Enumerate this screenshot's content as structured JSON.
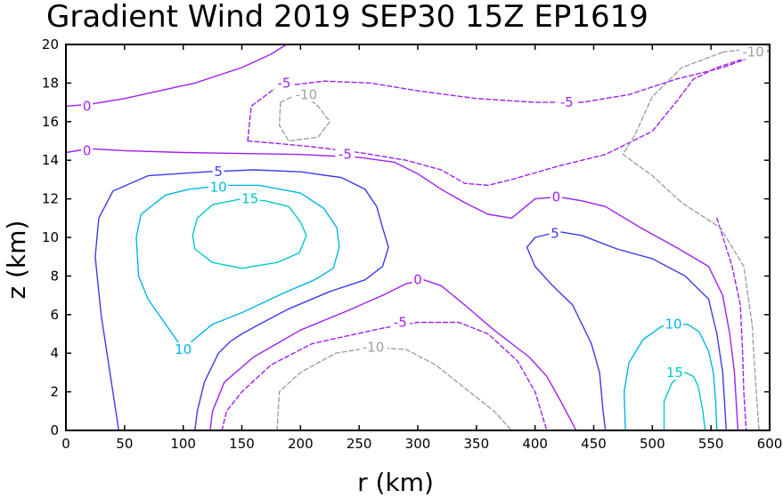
{
  "chart_data": {
    "type": "contour",
    "title": "Gradient Wind 2019 SEP30 15Z  EP1619",
    "xlabel": "r (km)",
    "ylabel": "z (km)",
    "xlim": [
      0,
      600
    ],
    "ylim": [
      0,
      20
    ],
    "x_ticks": [
      "0",
      "50",
      "100",
      "150",
      "200",
      "250",
      "300",
      "350",
      "400",
      "450",
      "500",
      "550",
      "600"
    ],
    "y_ticks": [
      "0",
      "2",
      "4",
      "6",
      "8",
      "10",
      "12",
      "14",
      "16",
      "18",
      "20"
    ],
    "grid": false,
    "level_colors": {
      "-10": "#a0a0a0",
      "-5": "#a020f0",
      "0": "#a020f0",
      "5": "#3c3ce6",
      "10": "#00b4e6",
      "15": "#00c8c8"
    },
    "contours": [
      {
        "level": 0,
        "points": [
          [
            0,
            16.8
          ],
          [
            20,
            16.9
          ],
          [
            50,
            17.2
          ],
          [
            95,
            17.8
          ],
          [
            110,
            18.0
          ],
          [
            150,
            18.8
          ],
          [
            175,
            19.5
          ],
          [
            188,
            20.0
          ]
        ]
      },
      {
        "level": 0,
        "points": [
          [
            0,
            14.4
          ],
          [
            20,
            14.6
          ],
          [
            50,
            14.5
          ],
          [
            100,
            14.4
          ],
          [
            150,
            14.35
          ],
          [
            200,
            14.3
          ],
          [
            250,
            14.15
          ],
          [
            280,
            13.9
          ],
          [
            300,
            13.3
          ],
          [
            320,
            12.5
          ],
          [
            340,
            11.8
          ],
          [
            360,
            11.2
          ],
          [
            380,
            11.0
          ],
          [
            400,
            12.0
          ],
          [
            420,
            12.1
          ],
          [
            440,
            11.9
          ],
          [
            460,
            11.6
          ],
          [
            490,
            10.5
          ],
          [
            520,
            9.5
          ],
          [
            548,
            8.5
          ],
          [
            560,
            7.0
          ],
          [
            566,
            5.0
          ],
          [
            570,
            3.0
          ],
          [
            572,
            1.0
          ],
          [
            573,
            0.0
          ]
        ]
      },
      {
        "level": 0,
        "points": [
          [
            123,
            0
          ],
          [
            125,
            1.0
          ],
          [
            135,
            2.5
          ],
          [
            160,
            3.8
          ],
          [
            200,
            5.2
          ],
          [
            240,
            6.2
          ],
          [
            270,
            7.0
          ],
          [
            290,
            7.6
          ],
          [
            305,
            7.8
          ],
          [
            320,
            7.5
          ],
          [
            340,
            6.5
          ],
          [
            365,
            5.2
          ],
          [
            395,
            3.8
          ],
          [
            410,
            2.8
          ],
          [
            422,
            1.5
          ],
          [
            435,
            0.0
          ]
        ]
      },
      {
        "level": 5,
        "points": [
          [
            45,
            0
          ],
          [
            40,
            2
          ],
          [
            30,
            6
          ],
          [
            25,
            9
          ],
          [
            28,
            11
          ],
          [
            40,
            12.4
          ],
          [
            70,
            13.2
          ],
          [
            120,
            13.4
          ],
          [
            160,
            13.5
          ],
          [
            200,
            13.4
          ],
          [
            235,
            13.1
          ],
          [
            255,
            12.5
          ],
          [
            265,
            11.6
          ],
          [
            270,
            10.5
          ],
          [
            275,
            9.5
          ],
          [
            270,
            8.5
          ],
          [
            255,
            7.8
          ],
          [
            240,
            7.5
          ],
          [
            225,
            7.2
          ],
          [
            190,
            6.3
          ],
          [
            165,
            5.5
          ],
          [
            150,
            5.0
          ],
          [
            140,
            4.6
          ],
          [
            130,
            4.0
          ],
          [
            118,
            2.5
          ],
          [
            112,
            1.0
          ],
          [
            110,
            0.0
          ]
        ]
      },
      {
        "level": 5,
        "points": [
          [
            460,
            0
          ],
          [
            458,
            1
          ],
          [
            455,
            3
          ],
          [
            448,
            4.5
          ],
          [
            432,
            6.5
          ],
          [
            415,
            7.5
          ],
          [
            400,
            8.5
          ],
          [
            393,
            9.5
          ],
          [
            400,
            10.0
          ],
          [
            420,
            10.3
          ],
          [
            440,
            10.1
          ],
          [
            470,
            9.4
          ],
          [
            500,
            8.9
          ],
          [
            528,
            8.0
          ],
          [
            548,
            6.8
          ],
          [
            555,
            5.0
          ],
          [
            560,
            3.0
          ],
          [
            562,
            1.0
          ],
          [
            563,
            0.0
          ]
        ]
      },
      {
        "level": 10,
        "points": [
          [
            100,
            4.2
          ],
          [
            85,
            5.5
          ],
          [
            70,
            6.8
          ],
          [
            62,
            8.0
          ],
          [
            60,
            10.0
          ],
          [
            64,
            11.2
          ],
          [
            85,
            12.2
          ],
          [
            105,
            12.5
          ],
          [
            135,
            12.7
          ],
          [
            165,
            12.7
          ],
          [
            200,
            12.3
          ],
          [
            220,
            11.5
          ],
          [
            231,
            10.5
          ],
          [
            233,
            9.5
          ],
          [
            228,
            8.4
          ],
          [
            212,
            7.8
          ],
          [
            185,
            7.1
          ],
          [
            150,
            6.1
          ],
          [
            125,
            5.5
          ],
          [
            107,
            4.6
          ]
        ]
      },
      {
        "level": 10,
        "points": [
          [
            477,
            0
          ],
          [
            476,
            2.0
          ],
          [
            480,
            3.5
          ],
          [
            492,
            4.7
          ],
          [
            508,
            5.4
          ],
          [
            530,
            5.5
          ],
          [
            540,
            5.1
          ],
          [
            548,
            4.1
          ],
          [
            552,
            3.0
          ],
          [
            554,
            1.5
          ],
          [
            555,
            0.0
          ]
        ]
      },
      {
        "level": 15,
        "points": [
          [
            108,
            10.1
          ],
          [
            112,
            11.0
          ],
          [
            125,
            11.7
          ],
          [
            150,
            12.0
          ],
          [
            170,
            11.9
          ],
          [
            190,
            11.6
          ],
          [
            200,
            10.8
          ],
          [
            205,
            10.1
          ],
          [
            199,
            9.2
          ],
          [
            180,
            8.7
          ],
          [
            150,
            8.4
          ],
          [
            125,
            8.7
          ],
          [
            110,
            9.4
          ],
          [
            108,
            10.1
          ]
        ]
      },
      {
        "level": 15,
        "points": [
          [
            510,
            0
          ],
          [
            510,
            1.5
          ],
          [
            517,
            2.5
          ],
          [
            528,
            3.0
          ],
          [
            535,
            2.8
          ],
          [
            539,
            2.3
          ],
          [
            543,
            1.0
          ],
          [
            545,
            0.0
          ]
        ]
      },
      {
        "level": -5,
        "points": [
          [
            155,
            15.0
          ],
          [
            158,
            16.8
          ],
          [
            180,
            17.8
          ],
          [
            220,
            18.1
          ],
          [
            260,
            18.0
          ],
          [
            300,
            17.6
          ],
          [
            350,
            17.2
          ],
          [
            400,
            17.0
          ],
          [
            440,
            17.0
          ],
          [
            480,
            17.4
          ],
          [
            520,
            18.2
          ],
          [
            560,
            18.8
          ],
          [
            600,
            19.7
          ]
        ]
      },
      {
        "level": -5,
        "points": [
          [
            155,
            15.0
          ],
          [
            175,
            14.9
          ],
          [
            210,
            14.7
          ],
          [
            250,
            14.4
          ],
          [
            290,
            14.0
          ],
          [
            320,
            13.5
          ],
          [
            340,
            12.8
          ],
          [
            360,
            12.7
          ],
          [
            380,
            13.0
          ],
          [
            420,
            13.7
          ],
          [
            460,
            14.3
          ],
          [
            500,
            15.5
          ],
          [
            520,
            17.0
          ],
          [
            535,
            18.2
          ],
          [
            555,
            18.8
          ],
          [
            600,
            19.7
          ]
        ]
      },
      {
        "level": -5,
        "points": [
          [
            133,
            0
          ],
          [
            137,
            1.0
          ],
          [
            150,
            2.0
          ],
          [
            175,
            3.4
          ],
          [
            210,
            4.5
          ],
          [
            240,
            4.9
          ],
          [
            270,
            5.3
          ],
          [
            300,
            5.6
          ],
          [
            335,
            5.6
          ],
          [
            360,
            5.0
          ],
          [
            385,
            3.6
          ],
          [
            400,
            2.0
          ],
          [
            405,
            1.0
          ],
          [
            410,
            0.0
          ]
        ]
      },
      {
        "level": -5,
        "points": [
          [
            555,
            11.0
          ],
          [
            568,
            8.5
          ],
          [
            575,
            6.5
          ],
          [
            577,
            4.0
          ],
          [
            578,
            2.0
          ],
          [
            580,
            0.0
          ]
        ]
      },
      {
        "level": -10,
        "points": [
          [
            183,
            17.0
          ],
          [
            200,
            17.5
          ],
          [
            215,
            16.8
          ],
          [
            225,
            16.0
          ],
          [
            215,
            15.2
          ],
          [
            190,
            15.0
          ],
          [
            182,
            15.8
          ],
          [
            183,
            17.0
          ]
        ]
      },
      {
        "level": -10,
        "points": [
          [
            180,
            0
          ],
          [
            182,
            2.0
          ],
          [
            200,
            3.0
          ],
          [
            230,
            4.0
          ],
          [
            260,
            4.3
          ],
          [
            290,
            4.2
          ],
          [
            315,
            3.4
          ],
          [
            340,
            2.2
          ],
          [
            365,
            1.0
          ],
          [
            380,
            0.0
          ]
        ]
      },
      {
        "level": -10,
        "points": [
          [
            560,
            19.6
          ],
          [
            600,
            19.9
          ]
        ]
      },
      {
        "level": -10,
        "points": [
          [
            560,
            19.6
          ],
          [
            525,
            18.8
          ],
          [
            500,
            17.3
          ],
          [
            485,
            15.3
          ],
          [
            475,
            14.3
          ],
          [
            500,
            13.2
          ],
          [
            525,
            11.8
          ],
          [
            558,
            10.5
          ],
          [
            578,
            8.5
          ],
          [
            585,
            5.5
          ],
          [
            588,
            2.5
          ],
          [
            591,
            0.0
          ]
        ]
      }
    ],
    "contour_labels": [
      {
        "text": "0",
        "x": 18,
        "y": 16.8,
        "level": 0
      },
      {
        "text": "0",
        "x": 18,
        "y": 14.5,
        "level": 0
      },
      {
        "text": "0",
        "x": 418,
        "y": 12.1,
        "level": 0
      },
      {
        "text": "0",
        "x": 300,
        "y": 7.8,
        "level": 0
      },
      {
        "text": "5",
        "x": 130,
        "y": 13.4,
        "level": 5
      },
      {
        "text": "5",
        "x": 417,
        "y": 10.2,
        "level": 5
      },
      {
        "text": "10",
        "x": 130,
        "y": 12.6,
        "level": 10
      },
      {
        "text": "10",
        "x": 100,
        "y": 4.2,
        "level": 10
      },
      {
        "text": "10",
        "x": 518,
        "y": 5.5,
        "level": 10
      },
      {
        "text": "15",
        "x": 157,
        "y": 12.0,
        "level": 15
      },
      {
        "text": "15",
        "x": 519,
        "y": 3.0,
        "level": 15
      },
      {
        "text": "-5",
        "x": 186,
        "y": 18.0,
        "level": -5
      },
      {
        "text": "-5",
        "x": 427,
        "y": 17.0,
        "level": -5
      },
      {
        "text": "-5",
        "x": 238,
        "y": 14.3,
        "level": -5
      },
      {
        "text": "-5",
        "x": 285,
        "y": 5.6,
        "level": -5
      },
      {
        "text": "-10",
        "x": 205,
        "y": 17.4,
        "level": -10
      },
      {
        "text": "-10",
        "x": 262,
        "y": 4.3,
        "level": -10
      },
      {
        "text": "-10",
        "x": 586,
        "y": 19.6,
        "level": -10
      }
    ]
  }
}
